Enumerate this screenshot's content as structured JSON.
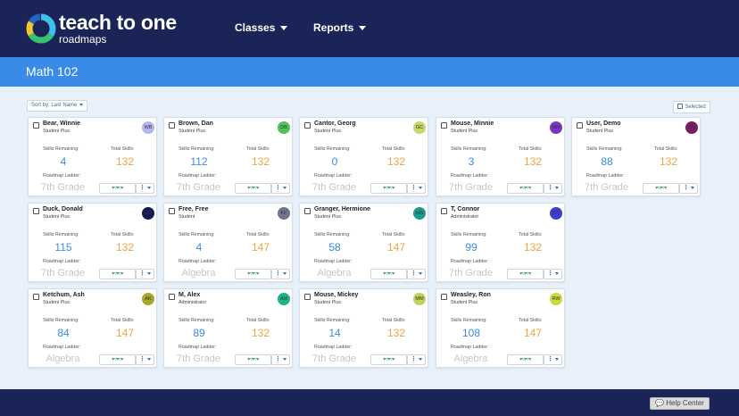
{
  "app": {
    "brand_name": "teach to one",
    "brand_sub": "roadmaps",
    "nav": [
      {
        "label": "Classes"
      },
      {
        "label": "Reports"
      }
    ]
  },
  "page": {
    "title": "Math 102",
    "sort_label": "Sort by: Last Name",
    "selected_label": "Selected"
  },
  "labels": {
    "skills_remaining": "Skills Remaining:",
    "total_skills": "Total Skills:",
    "roadmap_ladder": "Roadmap Ladder:",
    "menu_glyph": "⋮"
  },
  "students": [
    {
      "name": "Bear, Winnie",
      "role": "Student Plus",
      "initials": "WB",
      "avatar_color": "#b7b5ef",
      "skills_remaining": "4",
      "total_skills": "132",
      "ladder": "7th Grade"
    },
    {
      "name": "Brown, Dan",
      "role": "Student Plus",
      "initials": "DB",
      "avatar_color": "#4fc25c",
      "skills_remaining": "112",
      "total_skills": "132",
      "ladder": "7th Grade"
    },
    {
      "name": "Cantor, Georg",
      "role": "Student Plus",
      "initials": "GC",
      "avatar_color": "#c3d76a",
      "skills_remaining": "0",
      "total_skills": "132",
      "ladder": "7th Grade"
    },
    {
      "name": "Mouse, Minnie",
      "role": "Student Plus",
      "initials": "MM",
      "avatar_color": "#7a35c9",
      "skills_remaining": "3",
      "total_skills": "132",
      "ladder": "7th Grade"
    },
    {
      "name": "User, Demo",
      "role": "Student Plus",
      "initials": "DU",
      "avatar_color": "#7a1c62",
      "skills_remaining": "88",
      "total_skills": "132",
      "ladder": "7th Grade"
    },
    {
      "name": "Duck, Donald",
      "role": "Student Plus",
      "initials": "DD",
      "avatar_color": "#141a52",
      "skills_remaining": "115",
      "total_skills": "132",
      "ladder": "7th Grade"
    },
    {
      "name": "Free, Free",
      "role": "Student",
      "initials": "FF",
      "avatar_color": "#6f7590",
      "skills_remaining": "4",
      "total_skills": "147",
      "ladder": "Algebra"
    },
    {
      "name": "Granger, Hermione",
      "role": "Student Plus",
      "initials": "HG",
      "avatar_color": "#1c9a8a",
      "skills_remaining": "58",
      "total_skills": "147",
      "ladder": "Algebra"
    },
    {
      "name": "T, Connor",
      "role": "Administrator",
      "initials": "CT",
      "avatar_color": "#3e3ec9",
      "skills_remaining": "99",
      "total_skills": "132",
      "ladder": "7th Grade"
    },
    {
      "name": "Ketchum, Ash",
      "role": "Student Plus",
      "initials": "AK",
      "avatar_color": "#a7a829",
      "skills_remaining": "84",
      "total_skills": "147",
      "ladder": "Algebra"
    },
    {
      "name": "M, Alex",
      "role": "Administrator",
      "initials": "AM",
      "avatar_color": "#1fb58c",
      "skills_remaining": "89",
      "total_skills": "132",
      "ladder": "7th Grade"
    },
    {
      "name": "Mouse, Mickey",
      "role": "Student Plus",
      "initials": "MM",
      "avatar_color": "#bfd25b",
      "skills_remaining": "14",
      "total_skills": "132",
      "ladder": "7th Grade"
    },
    {
      "name": "Weasley, Ron",
      "role": "Student Plus",
      "initials": "RW",
      "avatar_color": "#cbd93e",
      "skills_remaining": "108",
      "total_skills": "147",
      "ladder": "Algebra"
    }
  ],
  "footer": {
    "help_label": "Help Center"
  },
  "colors": {
    "header": "#1b2456",
    "accent": "#3a8ae8",
    "remaining": "#3a8ae8",
    "total": "#f0a540"
  }
}
